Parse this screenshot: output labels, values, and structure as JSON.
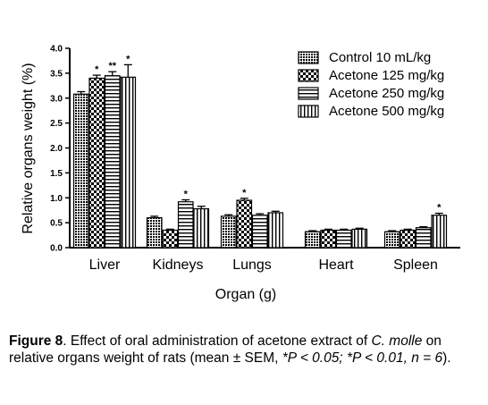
{
  "chart_data": {
    "type": "bar",
    "categories": [
      "Liver",
      "Kidneys",
      "Lungs",
      "Heart",
      "Spleen"
    ],
    "xlabel": "Organ (g)",
    "ylabel": "Relative organs weight (%)",
    "ylim": [
      0,
      4.0
    ],
    "yticks": [
      "0.0",
      "0.5",
      "1.0",
      "1.5",
      "2.0",
      "2.5",
      "3.0",
      "3.5",
      "4.0"
    ],
    "legend_position": "top-right",
    "grid": false,
    "series": [
      {
        "name": "Control 10 mL/kg",
        "pattern": "dense-dots",
        "values": [
          3.08,
          0.6,
          0.63,
          0.32,
          0.32
        ],
        "errors": [
          0.05,
          0.03,
          0.03,
          0.02,
          0.02
        ],
        "significance": [
          "",
          "",
          "",
          "",
          ""
        ]
      },
      {
        "name": "Acetone 125 mg/kg",
        "pattern": "checker",
        "values": [
          3.4,
          0.35,
          0.95,
          0.35,
          0.35
        ],
        "errors": [
          0.06,
          0.02,
          0.04,
          0.02,
          0.02
        ],
        "significance": [
          "*",
          "",
          "*",
          "",
          ""
        ]
      },
      {
        "name": "Acetone 250 mg/kg",
        "pattern": "horizontal-lines",
        "values": [
          3.45,
          0.92,
          0.65,
          0.35,
          0.4
        ],
        "errors": [
          0.08,
          0.04,
          0.03,
          0.02,
          0.02
        ],
        "significance": [
          "**",
          "*",
          "",
          "",
          ""
        ]
      },
      {
        "name": "Acetone 500 mg/kg",
        "pattern": "vertical-lines",
        "values": [
          3.42,
          0.78,
          0.7,
          0.37,
          0.65
        ],
        "errors": [
          0.25,
          0.05,
          0.03,
          0.02,
          0.04
        ],
        "significance": [
          "*",
          "",
          "",
          "",
          "*"
        ]
      }
    ]
  },
  "caption": {
    "figure_label": "Figure 8",
    "text_1": ". Effect of oral administration of acetone extract of ",
    "species": "C. molle",
    "text_2": " on relative organs weight of rats (mean ± SEM, ",
    "stats": "*P < 0.05; *P < 0.01, n = 6",
    "text_3": ")."
  }
}
